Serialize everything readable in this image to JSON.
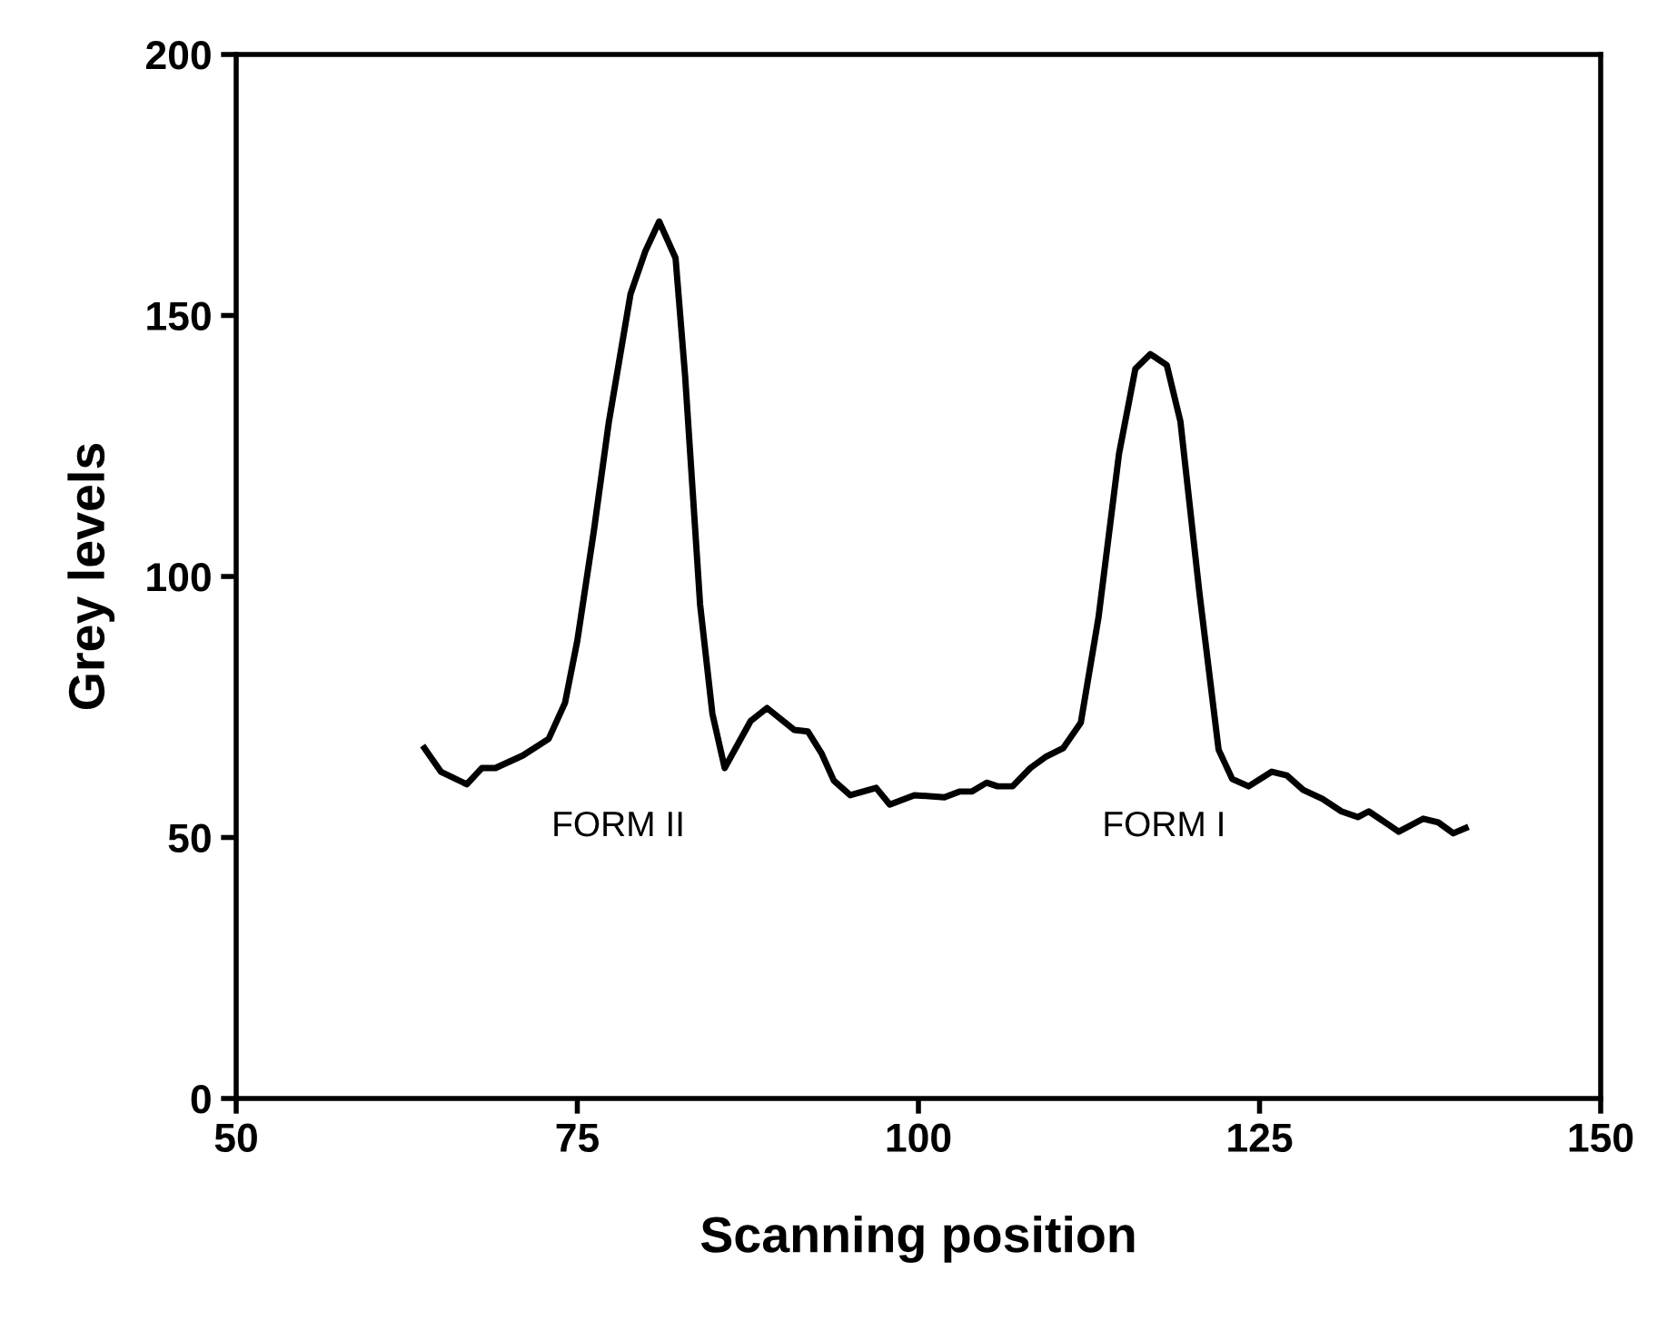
{
  "chart_data": {
    "type": "line",
    "xlabel": "Scanning position",
    "ylabel": "Grey levels",
    "series": [
      {
        "color": "#000000",
        "x": [
          63.8,
          65.0,
          66.9,
          68.0,
          69.0,
          71.0,
          72.9,
          74.1,
          75.0,
          76.2,
          77.3,
          78.9,
          80.0,
          81.0,
          82.2,
          82.9,
          84.0,
          84.9,
          85.8,
          87.7,
          88.9,
          90.9,
          91.9,
          92.9,
          93.8,
          95.0,
          96.9,
          97.9,
          99.7,
          101.9,
          103.0,
          103.9,
          105.0,
          105.8,
          106.9,
          108.2,
          109.3,
          110.6,
          111.9,
          113.2,
          114.7,
          115.9,
          117.0,
          118.2,
          119.2,
          120.6,
          122.0,
          123.0,
          124.2,
          125.9,
          127.0,
          128.2,
          129.6,
          131.0,
          132.2,
          133.0,
          134.2,
          135.2,
          137.0,
          138.1,
          139.2,
          140.1
        ],
        "values": [
          67.1,
          62.6,
          60.2,
          63.3,
          63.3,
          65.7,
          68.9,
          75.8,
          87.7,
          108.5,
          129.4,
          154.1,
          162.4,
          168.0,
          161.0,
          138.4,
          94.6,
          73.7,
          63.3,
          72.3,
          74.8,
          70.6,
          70.3,
          66.1,
          60.9,
          58.1,
          59.5,
          56.3,
          58.1,
          57.7,
          58.8,
          58.8,
          60.5,
          59.8,
          59.8,
          63.3,
          65.4,
          67.1,
          72.0,
          92.2,
          123.5,
          139.8,
          142.6,
          140.5,
          129.7,
          96.7,
          66.8,
          61.2,
          59.8,
          62.6,
          61.9,
          59.1,
          57.4,
          55.0,
          53.9,
          55.0,
          52.9,
          51.1,
          53.6,
          52.9,
          50.8,
          51.8
        ]
      }
    ],
    "annotations": [
      "FORM II",
      "FORM I"
    ],
    "xlim": [
      50,
      150
    ],
    "xticks": [
      50,
      75,
      100,
      125,
      150
    ],
    "ylim": [
      0,
      200
    ],
    "yticks": [
      0,
      50,
      100,
      150,
      200
    ],
    "grid": false,
    "legend": false,
    "marker": "none",
    "line_style": "solid"
  }
}
